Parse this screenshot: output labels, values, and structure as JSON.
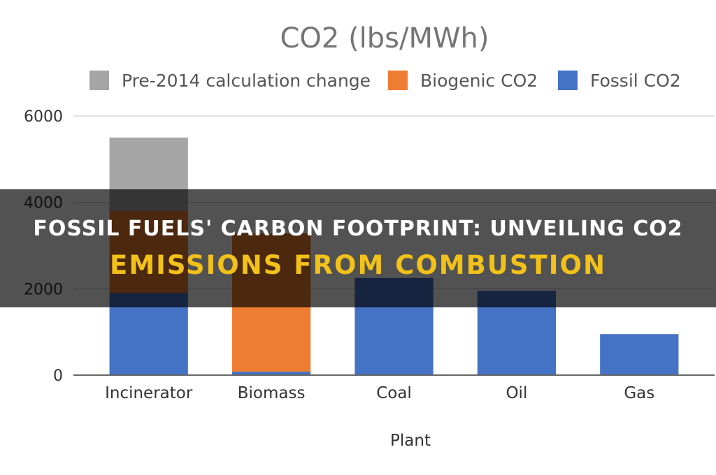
{
  "banner": {
    "line1": "Fossil Fuels' Carbon Footprint: Unveiling CO2",
    "line2": "Emissions From Combustion"
  },
  "colors": {
    "fossil": "#4472c4",
    "biogenic": "#ed7d31",
    "pre2014": "#a5a5a5",
    "banner_accent": "#f2c21a"
  },
  "chart_data": {
    "type": "bar",
    "stacked": true,
    "title": "CO2 (lbs/MWh)",
    "xlabel": "Plant",
    "ylabel": "",
    "categories": [
      "Incinerator",
      "Biomass",
      "Coal",
      "Oil",
      "Gas"
    ],
    "series": [
      {
        "name": "Fossil CO2",
        "color": "#4472c4",
        "values": [
          1900,
          80,
          2250,
          1950,
          950
        ]
      },
      {
        "name": "Biogenic CO2",
        "color": "#ed7d31",
        "values": [
          1900,
          3200,
          0,
          0,
          0
        ]
      },
      {
        "name": "Pre-2014 calculation change",
        "color": "#a5a5a5",
        "values": [
          1700,
          0,
          0,
          0,
          0
        ]
      }
    ],
    "legend_order": [
      "Pre-2014 calculation change",
      "Biogenic CO2",
      "Fossil CO2"
    ],
    "legend_position": "top",
    "ylim": [
      0,
      6000
    ],
    "yticks": [
      "6000",
      "4000",
      "2000",
      "0"
    ],
    "grid": true
  }
}
